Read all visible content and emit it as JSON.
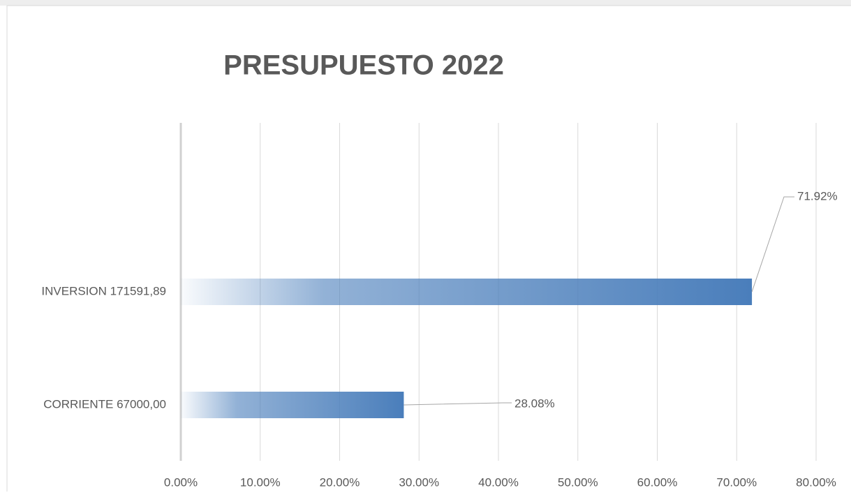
{
  "chart_data": {
    "type": "bar",
    "orientation": "horizontal",
    "title": "PRESUPUESTO 2022",
    "categories": [
      "INVERSION  171591,89",
      "CORRIENTE  67000,00"
    ],
    "values": [
      71.92,
      28.08
    ],
    "value_labels": [
      "71.92%",
      "28.08%"
    ],
    "color": "#4a7ebb",
    "xlim": [
      0,
      80
    ],
    "xticks": [
      {
        "value": 0,
        "label": "0.00%"
      },
      {
        "value": 10,
        "label": "10.00%"
      },
      {
        "value": 20,
        "label": "20.00%"
      },
      {
        "value": 30,
        "label": "30.00%"
      },
      {
        "value": 40,
        "label": "40.00%"
      },
      {
        "value": 50,
        "label": "50.00%"
      },
      {
        "value": 60,
        "label": "60.00%"
      },
      {
        "value": 70,
        "label": "70.00%"
      },
      {
        "value": 80,
        "label": "80.00%"
      }
    ],
    "grid": true
  }
}
